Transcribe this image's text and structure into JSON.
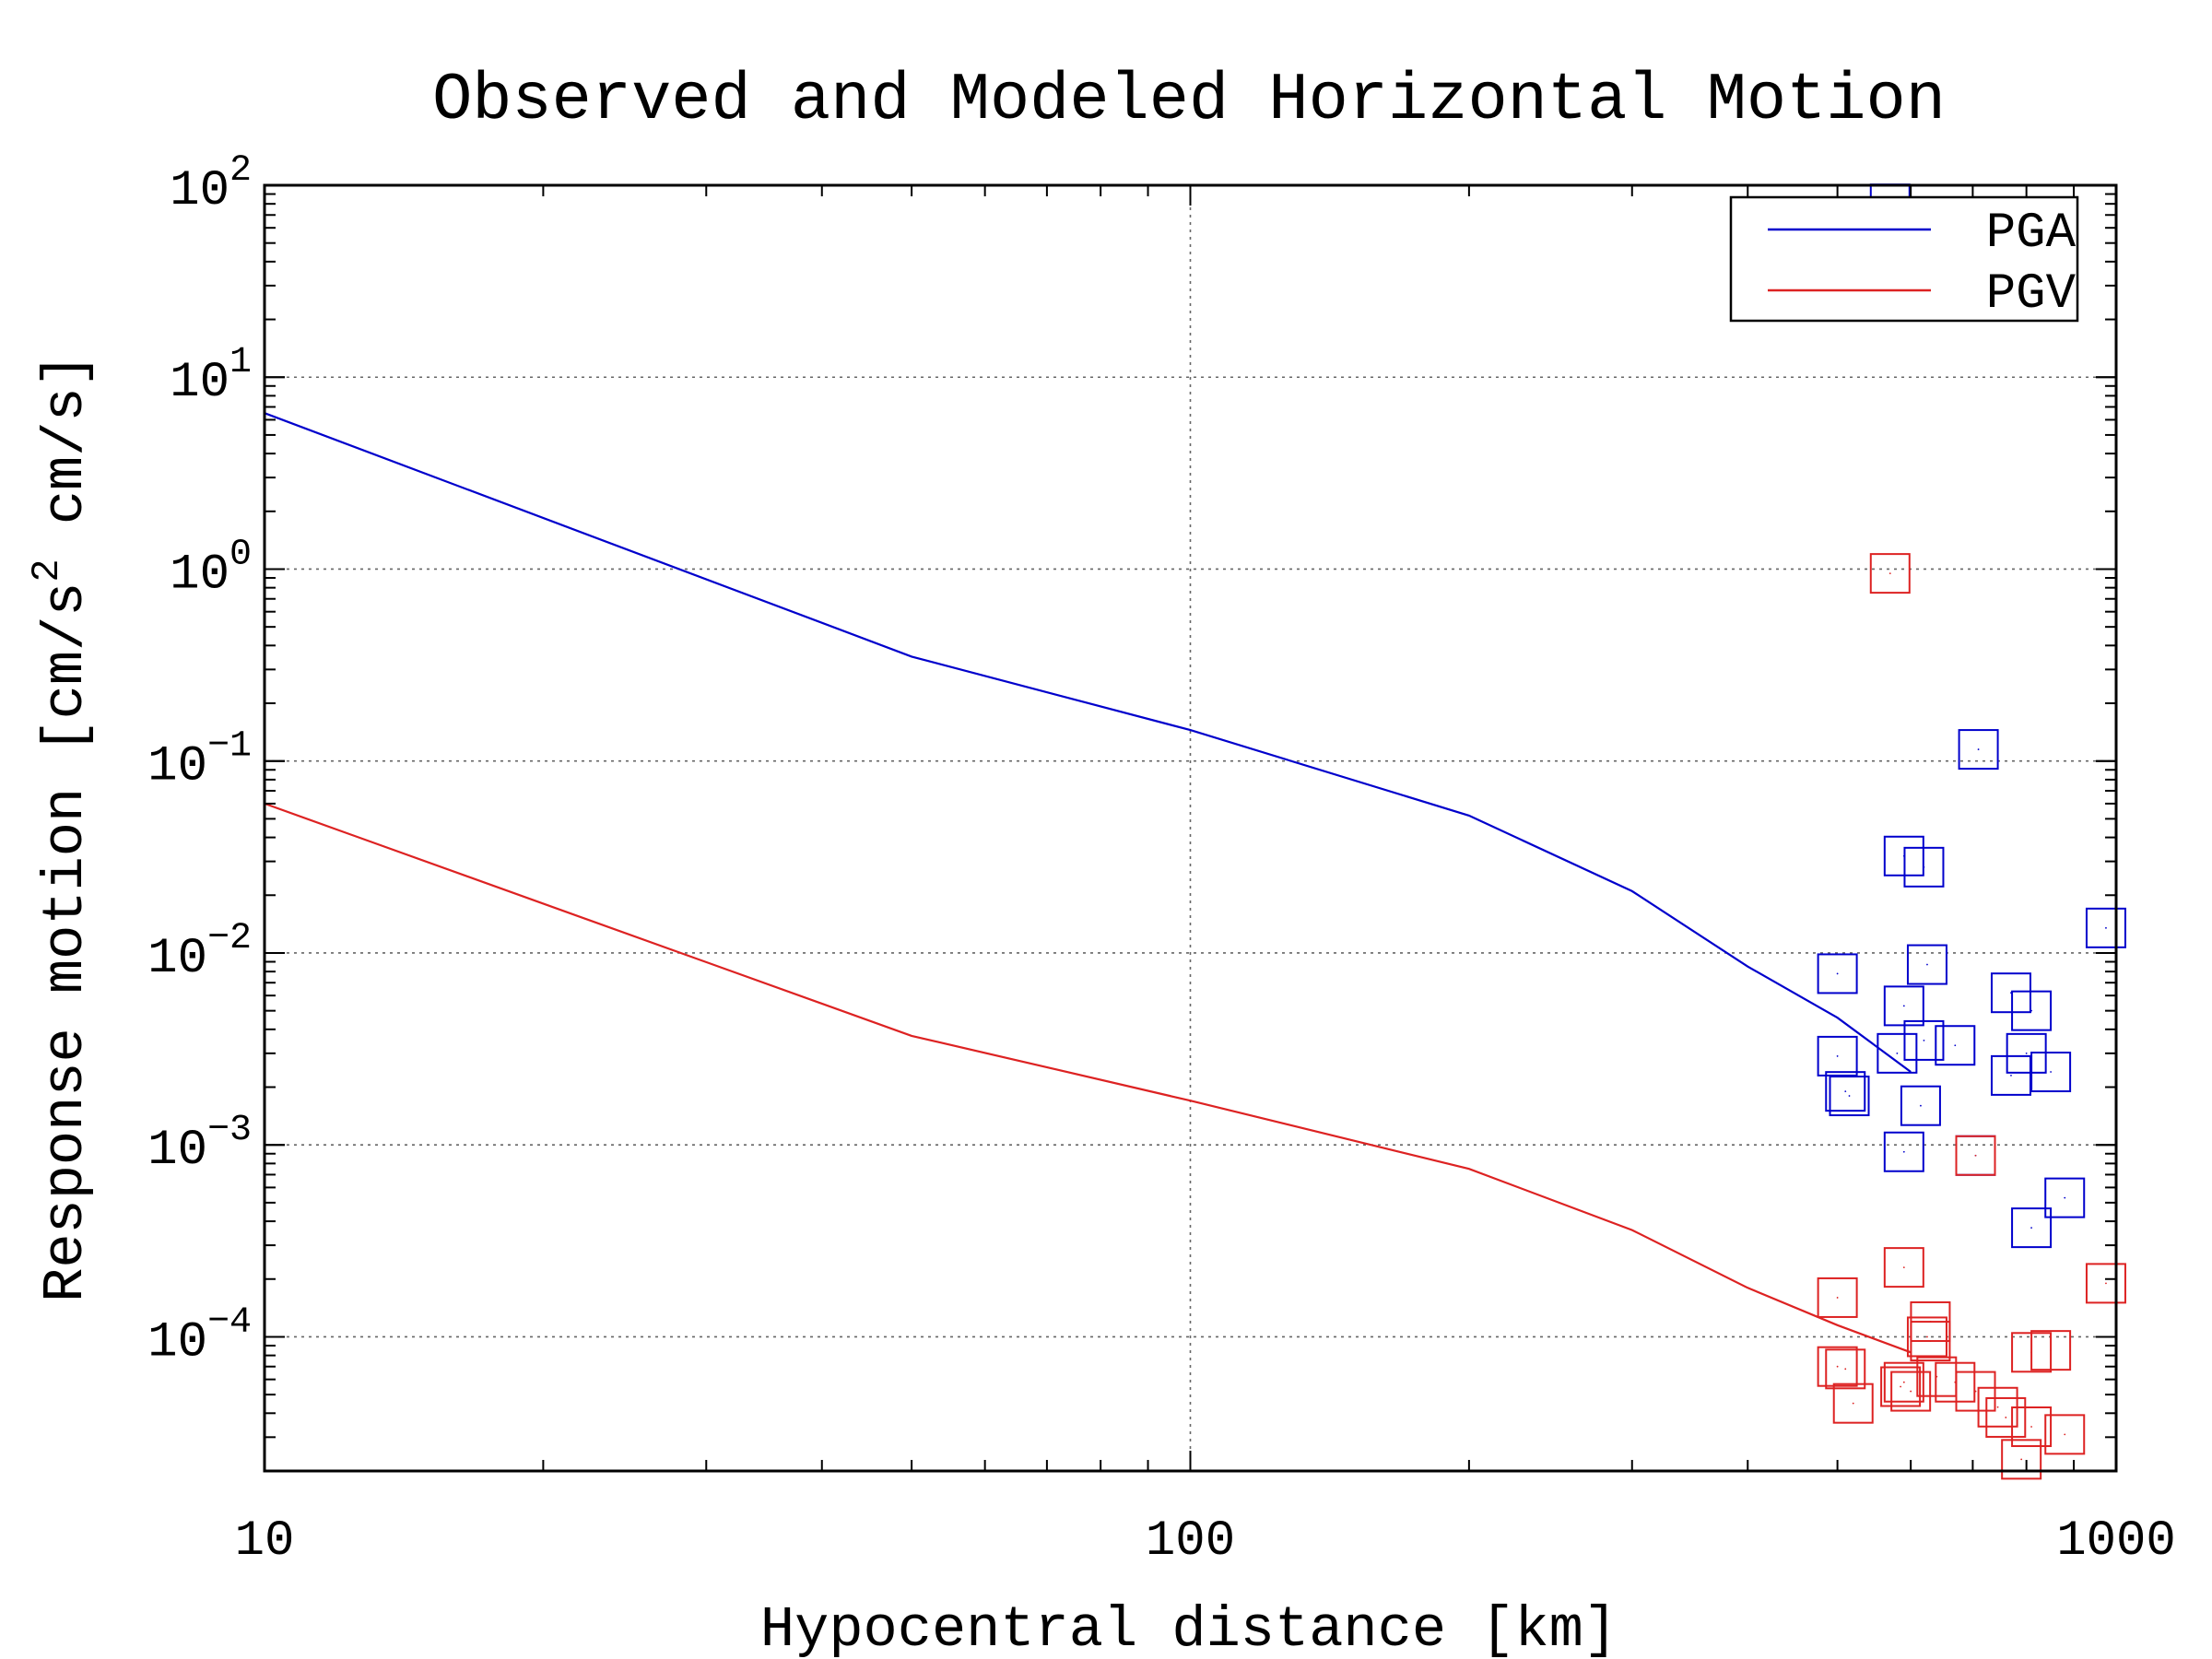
{
  "chart_data": {
    "type": "scatter",
    "title": "Observed and Modeled Horizontal Motion",
    "xlabel": "Hypocentral distance [km]",
    "ylabel": "Response motion [cm/s^2 cm/s]",
    "ylabel_parts": {
      "a": "Response motion [cm/s",
      "sup": "2",
      "b": " cm/s]"
    },
    "x_scale": "log",
    "y_scale": "log",
    "xlim": [
      10,
      1000
    ],
    "ylim": [
      2e-05,
      100
    ],
    "grid": true,
    "legend_position": "top-right",
    "x_ticks": [
      {
        "value": 10,
        "label": "10"
      },
      {
        "value": 100,
        "label": "100"
      },
      {
        "value": 1000,
        "label": "1000"
      }
    ],
    "y_ticks": [
      {
        "value": 100,
        "base": "10",
        "exp": "2"
      },
      {
        "value": 10,
        "base": "10",
        "exp": "1"
      },
      {
        "value": 1,
        "base": "10",
        "exp": "0"
      },
      {
        "value": 0.1,
        "base": "10",
        "exp": "−1"
      },
      {
        "value": 0.01,
        "base": "10",
        "exp": "−2"
      },
      {
        "value": 0.001,
        "base": "10",
        "exp": "−3"
      },
      {
        "value": 0.0001,
        "base": "10",
        "exp": "−4"
      }
    ],
    "series": [
      {
        "name": "PGA",
        "color": "#0000cc",
        "model_curve": {
          "x": [
            10,
            50,
            100,
            200,
            300,
            400,
            500,
            600
          ],
          "y": [
            6.5,
            0.35,
            0.145,
            0.052,
            0.021,
            0.0085,
            0.0046,
            0.0024
          ]
        },
        "observed": [
          {
            "x": 570,
            "y": 80
          },
          {
            "x": 710,
            "y": 0.115
          },
          {
            "x": 590,
            "y": 0.032
          },
          {
            "x": 620,
            "y": 0.028
          },
          {
            "x": 975,
            "y": 0.0135
          },
          {
            "x": 500,
            "y": 0.0078
          },
          {
            "x": 625,
            "y": 0.0087
          },
          {
            "x": 770,
            "y": 0.0062
          },
          {
            "x": 590,
            "y": 0.0053
          },
          {
            "x": 810,
            "y": 0.005
          },
          {
            "x": 620,
            "y": 0.0035
          },
          {
            "x": 670,
            "y": 0.0033
          },
          {
            "x": 500,
            "y": 0.0029
          },
          {
            "x": 580,
            "y": 0.003
          },
          {
            "x": 800,
            "y": 0.003
          },
          {
            "x": 770,
            "y": 0.0023
          },
          {
            "x": 850,
            "y": 0.0024
          },
          {
            "x": 510,
            "y": 0.0019
          },
          {
            "x": 515,
            "y": 0.0018
          },
          {
            "x": 615,
            "y": 0.0016
          },
          {
            "x": 590,
            "y": 0.00092
          },
          {
            "x": 705,
            "y": 0.00088
          },
          {
            "x": 880,
            "y": 0.00053
          },
          {
            "x": 810,
            "y": 0.00037
          }
        ]
      },
      {
        "name": "PGV",
        "color": "#dd2222",
        "model_curve": {
          "x": [
            10,
            50,
            100,
            200,
            300,
            400,
            500,
            600
          ],
          "y": [
            0.06,
            0.0037,
            0.0017,
            0.00075,
            0.00036,
            0.00018,
            0.000115,
            8.3e-05
          ]
        },
        "observed": [
          {
            "x": 570,
            "y": 0.95
          },
          {
            "x": 705,
            "y": 0.00088
          },
          {
            "x": 590,
            "y": 0.00023
          },
          {
            "x": 975,
            "y": 0.00019
          },
          {
            "x": 500,
            "y": 0.00016
          },
          {
            "x": 630,
            "y": 0.00012
          },
          {
            "x": 625,
            "y": 0.0001
          },
          {
            "x": 630,
            "y": 9.5e-05
          },
          {
            "x": 850,
            "y": 8.5e-05
          },
          {
            "x": 810,
            "y": 8.3e-05
          },
          {
            "x": 500,
            "y": 7e-05
          },
          {
            "x": 510,
            "y": 6.8e-05
          },
          {
            "x": 640,
            "y": 6.2e-05
          },
          {
            "x": 670,
            "y": 5.8e-05
          },
          {
            "x": 590,
            "y": 5.8e-05
          },
          {
            "x": 585,
            "y": 5.5e-05
          },
          {
            "x": 600,
            "y": 5.2e-05
          },
          {
            "x": 705,
            "y": 5.2e-05
          },
          {
            "x": 520,
            "y": 4.5e-05
          },
          {
            "x": 745,
            "y": 4.3e-05
          },
          {
            "x": 760,
            "y": 3.8e-05
          },
          {
            "x": 810,
            "y": 3.4e-05
          },
          {
            "x": 880,
            "y": 3.1e-05
          },
          {
            "x": 790,
            "y": 2.3e-05
          }
        ]
      }
    ]
  }
}
